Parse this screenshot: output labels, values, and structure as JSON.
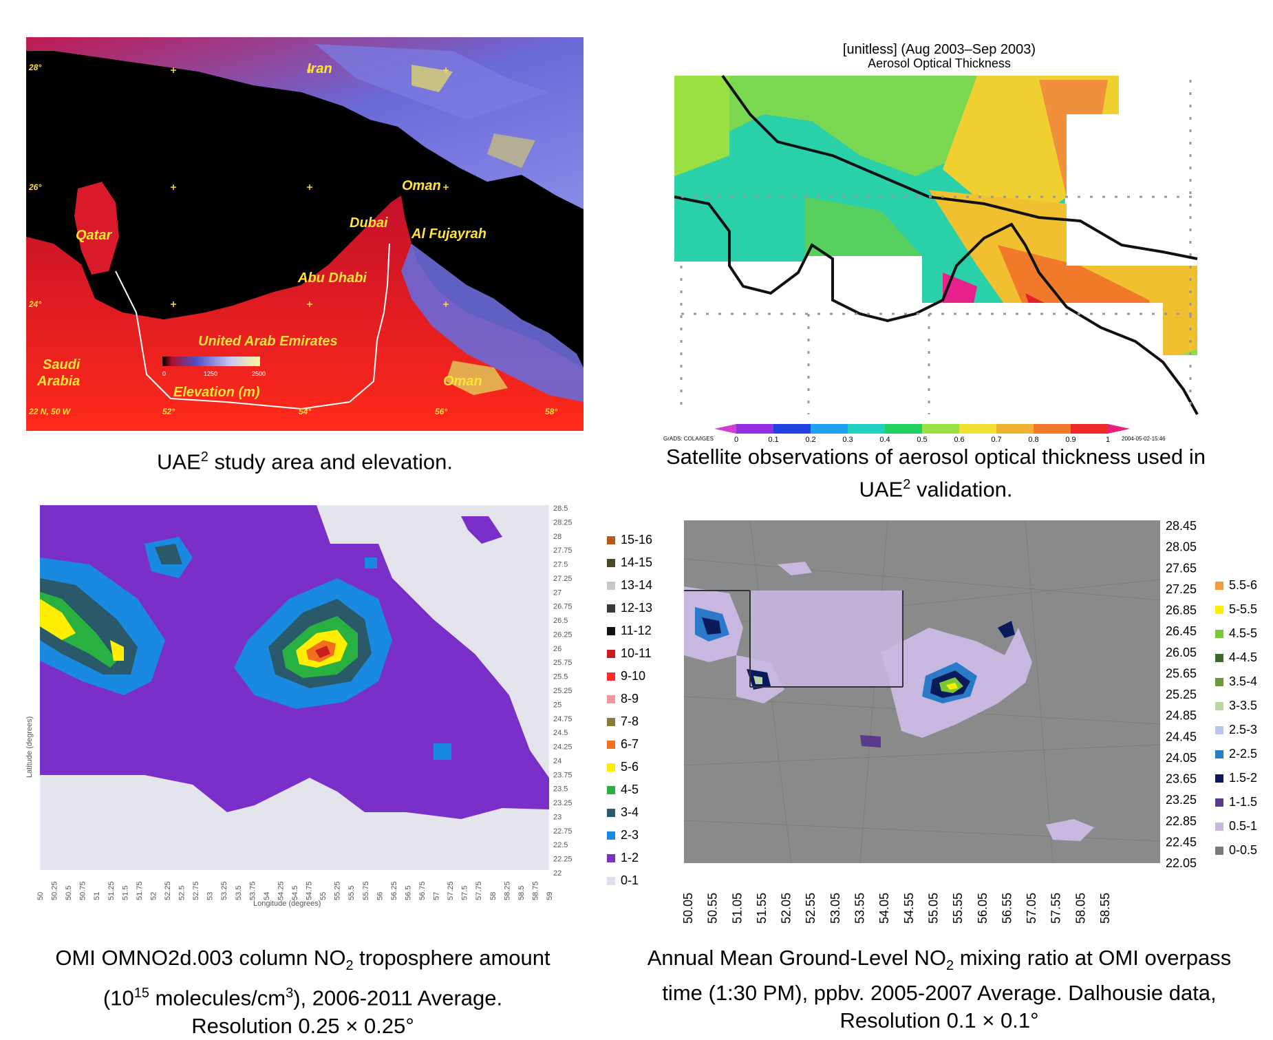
{
  "panel1": {
    "caption_text": "UAE",
    "caption_sup": "2",
    "caption_rest": " study area and elevation.",
    "labels": {
      "iran": "Iran",
      "qatar": "Qatar",
      "oman_north": "Oman",
      "dubai": "Dubai",
      "al_fujayrah": "Al Fujayrah",
      "abu_dhabi": "Abu Dhabi",
      "uae": "United Arab Emirates",
      "saudi1": "Saudi",
      "saudi2": "Arabia",
      "oman_south": "Oman",
      "elevation": "Elevation (m)",
      "corner": "22 N, 50 W",
      "lat28": "28°",
      "lat24": "24°",
      "lat26": "26°",
      "lon52": "52°",
      "lon54": "54°",
      "lon56": "56°",
      "lon58": "58°",
      "elev0": "0",
      "elev1250": "1250",
      "elev2500": "2500"
    }
  },
  "panel2": {
    "title_line1": "[unitless] (Aug 2003–Sep 2003)",
    "title_line2": "Aerosol Optical Thickness",
    "colorbar_ticks": [
      "0",
      "0.1",
      "0.2",
      "0.3",
      "0.4",
      "0.5",
      "0.6",
      "0.7",
      "0.8",
      "0.9",
      "1"
    ],
    "left_note": "GrADS: COLA/IGES",
    "right_note": "2004-05-02-15:46",
    "caption_line1": "Satellite observations of aerosol optical thickness used in",
    "caption_line2a": "UAE",
    "caption_line2sup": "2",
    "caption_line2b": " validation."
  },
  "panel3": {
    "lat_ticks": [
      "28.5",
      "28.25",
      "28",
      "27.75",
      "27.5",
      "27.25",
      "27",
      "26.75",
      "26.5",
      "26.25",
      "26",
      "25.75",
      "25.5",
      "25.25",
      "25",
      "24.75",
      "24.5",
      "24.25",
      "24",
      "23.75",
      "23.5",
      "23.25",
      "23",
      "22.75",
      "22.5",
      "22.25",
      "22"
    ],
    "lon_ticks": [
      "50",
      "50.25",
      "50.5",
      "50.75",
      "51",
      "51.25",
      "51.5",
      "51.75",
      "52",
      "52.25",
      "52.5",
      "52.75",
      "53",
      "53.25",
      "53.5",
      "53.75",
      "54",
      "54.25",
      "54.5",
      "54.75",
      "55",
      "55.25",
      "55.5",
      "55.75",
      "56",
      "56.25",
      "56.5",
      "56.75",
      "57",
      "57.25",
      "57.5",
      "57.75",
      "58",
      "58.25",
      "58.5",
      "58.75",
      "59"
    ],
    "xlabel": "Longitude (degrees)",
    "ylabel": "Latitude (degrees)",
    "legend": [
      {
        "label": "15-16",
        "color": "#b85a1e"
      },
      {
        "label": "14-15",
        "color": "#4a4a2a"
      },
      {
        "label": "13-14",
        "color": "#c8c8c8"
      },
      {
        "label": "12-13",
        "color": "#3a3a3a"
      },
      {
        "label": "11-12",
        "color": "#111111"
      },
      {
        "label": "10-11",
        "color": "#c81e1e"
      },
      {
        "label": "9-10",
        "color": "#ff2a2a"
      },
      {
        "label": "8-9",
        "color": "#e89a9a"
      },
      {
        "label": "7-8",
        "color": "#8a7a3a"
      },
      {
        "label": "6-7",
        "color": "#f07020"
      },
      {
        "label": "5-6",
        "color": "#ffee00"
      },
      {
        "label": "4-5",
        "color": "#28b040"
      },
      {
        "label": "3-4",
        "color": "#2a5a6a"
      },
      {
        "label": "2-3",
        "color": "#1a8ae0"
      },
      {
        "label": "1-2",
        "color": "#7a30c8"
      },
      {
        "label": "0-1",
        "color": "#e0e0ea"
      }
    ],
    "caption_line1a": "OMI OMNO2d.003 column NO",
    "caption_line1sub": "2",
    "caption_line1b": " troposphere amount",
    "caption_line2a": "(10",
    "caption_line2sup": "15",
    "caption_line2b": " molecules/cm",
    "caption_line2sup2": "3",
    "caption_line2c": "), 2006-2011 Average.",
    "caption_line3": "Resolution 0.25 × 0.25°"
  },
  "panel4": {
    "lat_ticks": [
      "28.45",
      "28.05",
      "27.65",
      "27.25",
      "26.85",
      "26.45",
      "26.05",
      "25.65",
      "25.25",
      "24.85",
      "24.45",
      "24.05",
      "23.65",
      "23.25",
      "22.85",
      "22.45",
      "22.05"
    ],
    "lon_ticks": [
      "50.05",
      "50.55",
      "51.05",
      "51.55",
      "52.05",
      "52.55",
      "53.05",
      "53.55",
      "54.05",
      "54.55",
      "55.05",
      "55.55",
      "56.05",
      "56.55",
      "57.05",
      "57.55",
      "58.05",
      "58.55"
    ],
    "legend": [
      {
        "label": "5.5-6",
        "color": "#f59a3a"
      },
      {
        "label": "5-5.5",
        "color": "#ffee00"
      },
      {
        "label": "4.5-5",
        "color": "#7ac83a"
      },
      {
        "label": "4-4.5",
        "color": "#3a6a2a"
      },
      {
        "label": "3.5-4",
        "color": "#6a9a3a"
      },
      {
        "label": "3-3.5",
        "color": "#b8d8a0"
      },
      {
        "label": "2.5-3",
        "color": "#b8c8e8"
      },
      {
        "label": "2-2.5",
        "color": "#2a7ac8"
      },
      {
        "label": "1.5-2",
        "color": "#0a1a5a"
      },
      {
        "label": "1-1.5",
        "color": "#5a3a8a"
      },
      {
        "label": "0.5-1",
        "color": "#c8b8e0"
      },
      {
        "label": "0-0.5",
        "color": "#7a7a7a"
      }
    ],
    "caption_line1a": "Annual Mean Ground-Level NO",
    "caption_line1sub": "2",
    "caption_line1b": " mixing ratio at OMI overpass",
    "caption_line2": "time (1:30 PM), ppbv. 2005-2007 Average. Dalhousie data,",
    "caption_line3": "Resolution 0.1 × 0.1°"
  }
}
